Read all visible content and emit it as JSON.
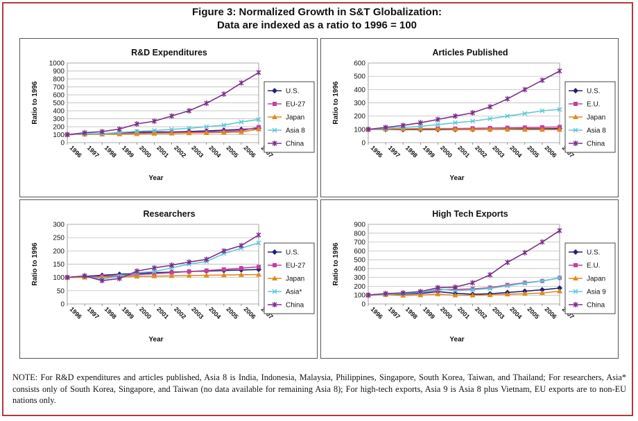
{
  "figure": {
    "title_line1": "Figure 3: Normalized Growth in S&T Globalization:",
    "title_line2": "Data are indexed as a ratio to 1996 = 100",
    "note": "NOTE: For R&D expenditures and articles published, Asia 8 is India, Indonesia, Malaysia, Philippines, Singapore, South Korea, Taiwan, and Thailand; For researchers, Asia* consists only of South Korea, Singapore, and Taiwan (no data available for remaining Asia 8); For high-tech exports, Asia 9 is Asia 8 plus Vietnam, EU exports are to non-EU nations only."
  },
  "series_colors": [
    "#1f1f7a",
    "#c040a0",
    "#e08a1a",
    "#5fc7d8",
    "#7a2e8a"
  ],
  "series_markers": [
    "diamond",
    "square",
    "triangle",
    "x",
    "x-plus"
  ],
  "chart_data": [
    {
      "type": "line",
      "title": "R&D Expenditures",
      "xlabel": "Year",
      "ylabel": "Ratio to 1996",
      "ylim": [
        0,
        1000
      ],
      "ytick_step": 100,
      "grid": true,
      "legend_placement": "right",
      "x": [
        "1996",
        "1997",
        "1998",
        "1999",
        "2000",
        "2001",
        "2002",
        "2003",
        "2004",
        "2005",
        "2006",
        "2007"
      ],
      "series": [
        {
          "name": "U.S.",
          "values": [
            100,
            106,
            114,
            122,
            132,
            134,
            134,
            140,
            147,
            156,
            166,
            180
          ]
        },
        {
          "name": "EU-27",
          "values": [
            100,
            104,
            108,
            113,
            119,
            123,
            127,
            130,
            134,
            139,
            150,
            195
          ]
        },
        {
          "name": "Japan",
          "values": [
            100,
            104,
            104,
            106,
            110,
            114,
            116,
            120,
            122,
            128,
            134,
            168
          ]
        },
        {
          "name": "Asia 8",
          "values": [
            100,
            112,
            112,
            128,
            142,
            152,
            166,
            180,
            200,
            220,
            260,
            290
          ]
        },
        {
          "name": "China",
          "values": [
            100,
            124,
            138,
            170,
            235,
            270,
            335,
            400,
            495,
            610,
            750,
            880
          ]
        }
      ]
    },
    {
      "type": "line",
      "title": "Articles Published",
      "xlabel": "Year",
      "ylabel": "Ratio to 1996",
      "ylim": [
        0,
        600
      ],
      "ytick_step": 100,
      "grid": true,
      "legend_placement": "right",
      "x": [
        "1996",
        "1997",
        "1998",
        "1999",
        "2000",
        "2001",
        "2002",
        "2003",
        "2004",
        "2005",
        "2006",
        "2007"
      ],
      "series": [
        {
          "name": "U.S.",
          "values": [
            100,
            99,
            98,
            98,
            98,
            98,
            99,
            100,
            102,
            104,
            104,
            106
          ]
        },
        {
          "name": "E.U.",
          "values": [
            100,
            102,
            104,
            106,
            106,
            106,
            108,
            110,
            112,
            114,
            116,
            118
          ]
        },
        {
          "name": "Japan",
          "values": [
            100,
            101,
            102,
            102,
            102,
            100,
            100,
            100,
            99,
            98,
            98,
            98
          ]
        },
        {
          "name": "Asia 8",
          "values": [
            100,
            108,
            115,
            122,
            136,
            150,
            162,
            180,
            200,
            220,
            240,
            250
          ]
        },
        {
          "name": "China",
          "values": [
            100,
            115,
            130,
            150,
            175,
            200,
            225,
            270,
            330,
            400,
            470,
            540
          ]
        }
      ]
    },
    {
      "type": "line",
      "title": "Researchers",
      "xlabel": "Year",
      "ylabel": "Ratio to 1996",
      "ylim": [
        0,
        300
      ],
      "ytick_step": 50,
      "grid": true,
      "legend_placement": "right",
      "x": [
        "1996",
        "1997",
        "1998",
        "1999",
        "2000",
        "2001",
        "2002",
        "2003",
        "2004",
        "2005",
        "2006",
        "2007"
      ],
      "series": [
        {
          "name": "U.S.",
          "values": [
            100,
            104,
            108,
            112,
            115,
            118,
            120,
            122,
            124,
            126,
            128,
            130
          ]
        },
        {
          "name": "EU-27",
          "values": [
            100,
            102,
            104,
            106,
            110,
            114,
            118,
            122,
            126,
            130,
            135,
            140
          ]
        },
        {
          "name": "Japan",
          "values": [
            100,
            100,
            101,
            102,
            104,
            105,
            106,
            107,
            108,
            109,
            110,
            111
          ]
        },
        {
          "name": "Asia*",
          "values": [
            100,
            105,
            94,
            104,
            118,
            122,
            136,
            150,
            160,
            190,
            210,
            230
          ]
        },
        {
          "name": "China",
          "values": [
            100,
            106,
            88,
            96,
            124,
            136,
            146,
            158,
            168,
            200,
            220,
            260
          ]
        }
      ]
    },
    {
      "type": "line",
      "title": "High Tech Exports",
      "xlabel": "Year",
      "ylabel": "Ratio to 1996",
      "ylim": [
        0,
        900
      ],
      "ytick_step": 100,
      "grid": true,
      "legend_placement": "right",
      "x": [
        "1996",
        "1997",
        "1998",
        "1999",
        "2000",
        "2001",
        "2002",
        "2003",
        "2004",
        "2005",
        "2006",
        "2007"
      ],
      "series": [
        {
          "name": "U.S.",
          "values": [
            100,
            108,
            112,
            118,
            140,
            120,
            110,
            115,
            130,
            145,
            160,
            180
          ]
        },
        {
          "name": "E.U.",
          "values": [
            100,
            110,
            118,
            130,
            160,
            165,
            170,
            185,
            215,
            240,
            260,
            295
          ]
        },
        {
          "name": "Japan",
          "values": [
            100,
            104,
            96,
            100,
            112,
            98,
            98,
            102,
            110,
            116,
            124,
            145
          ]
        },
        {
          "name": "Asia 9",
          "values": [
            100,
            112,
            118,
            130,
            170,
            150,
            160,
            175,
            205,
            235,
            260,
            295
          ]
        },
        {
          "name": "China",
          "values": [
            100,
            118,
            125,
            140,
            185,
            190,
            240,
            330,
            470,
            580,
            700,
            830
          ]
        }
      ]
    }
  ]
}
